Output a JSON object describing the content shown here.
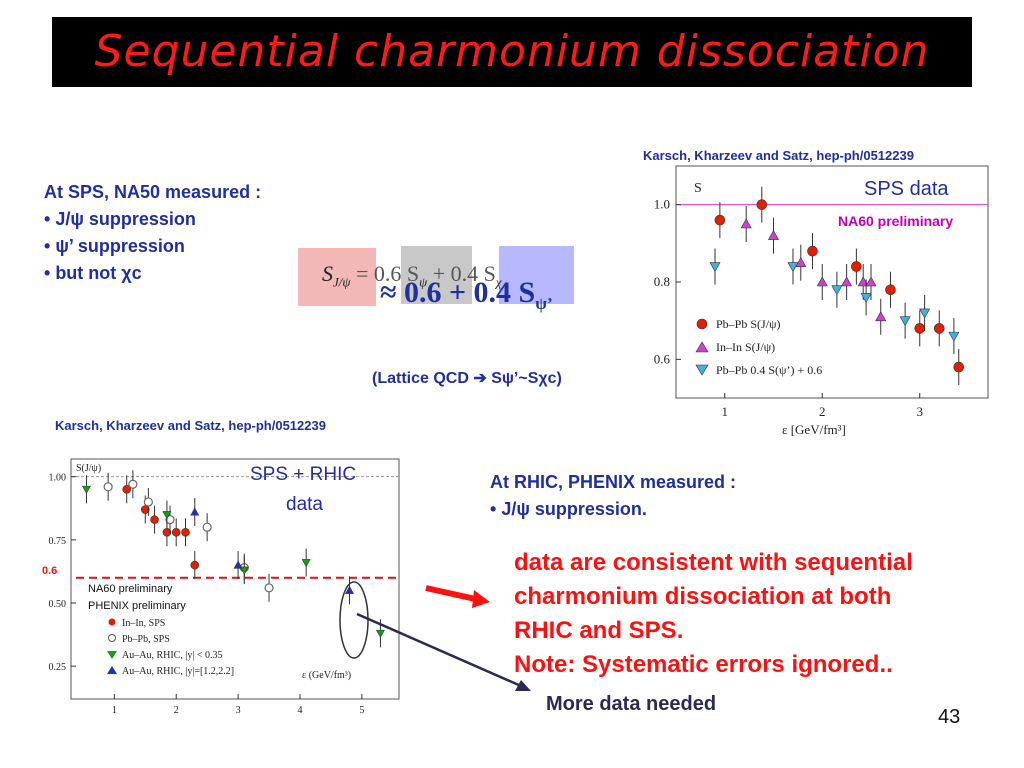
{
  "title": "Sequential charmonium dissociation",
  "left_text": {
    "heading": "At SPS, NA50 measured :",
    "bullets": [
      "J/ψ suppression",
      "ψ’ suppression",
      "but not χc"
    ]
  },
  "formula": {
    "lhs": "S",
    "lhs_sub": "J/ψ",
    "eq": "= 0.6 S",
    "term1_sub": "ψ",
    "plus": "+ 0.4 S",
    "term2_sub": "χ",
    "approx": "≈ 0.6 + 0.4 S",
    "approx_sub": "ψ’"
  },
  "lattice_note": "(Lattice QCD ➔ Sψ’~Sχc)",
  "citation_top": "Karsch, Kharzeev and Satz, hep-ph/0512239",
  "citation_bottom": "Karsch, Kharzeev and Satz, hep-ph/0512239",
  "rhic_text": {
    "heading": "At RHIC, PHENIX measured :",
    "bullet": "J/ψ suppression."
  },
  "conclusion": [
    "data are consistent with sequential",
    "charmonium dissociation at both",
    "RHIC and SPS.",
    "Note: Systematic errors ignored.."
  ],
  "more_data": "More data needed",
  "page_number": "43",
  "colors": {
    "title_bg": "#000000",
    "title_fg": "#ff1a1a",
    "blue_text": "#1f2f9f",
    "red_text": "#ff1010",
    "magenta": "#c000c0"
  },
  "chart_data": [
    {
      "type": "scatter",
      "overlay_title": "SPS data",
      "overlay_label": "NA60 preliminary",
      "panel_label": "S",
      "xlabel": "ε  [GeV/fm³]",
      "xlim": [
        0.5,
        3.7
      ],
      "ylim": [
        0.5,
        1.1
      ],
      "xticks": [
        "1",
        "2",
        "3"
      ],
      "yticks": [
        "0.6",
        "0.8",
        "1.0"
      ],
      "reference_line": 1.0,
      "legend": [
        "Pb–Pb  S(J/ψ)",
        "In–In    S(J/ψ)",
        "Pb–Pb  0.4 S(ψ’) + 0.6"
      ],
      "series": [
        {
          "name": "Pb–Pb  S(J/ψ)",
          "marker": "circle",
          "color": "#e02000",
          "points": [
            [
              0.95,
              0.96
            ],
            [
              1.38,
              1.0
            ],
            [
              1.9,
              0.88
            ],
            [
              2.35,
              0.84
            ],
            [
              2.7,
              0.78
            ],
            [
              3.0,
              0.68
            ],
            [
              3.2,
              0.68
            ],
            [
              3.4,
              0.58
            ]
          ]
        },
        {
          "name": "In–In    S(J/ψ)",
          "marker": "triangle-up",
          "color": "#d040d0",
          "points": [
            [
              1.22,
              0.95
            ],
            [
              1.5,
              0.92
            ],
            [
              1.78,
              0.85
            ],
            [
              2.0,
              0.8
            ],
            [
              2.25,
              0.8
            ],
            [
              2.42,
              0.8
            ],
            [
              2.5,
              0.8
            ],
            [
              2.6,
              0.71
            ]
          ]
        },
        {
          "name": "Pb–Pb  0.4 S(ψ’) + 0.6",
          "marker": "triangle-down",
          "color": "#40b0e0",
          "points": [
            [
              0.9,
              0.84
            ],
            [
              1.7,
              0.84
            ],
            [
              2.15,
              0.78
            ],
            [
              2.45,
              0.76
            ],
            [
              2.85,
              0.7
            ],
            [
              3.05,
              0.72
            ],
            [
              3.35,
              0.66
            ]
          ]
        }
      ]
    },
    {
      "type": "scatter",
      "overlay_title": "SPS + RHIC data",
      "panel_label": "S(J/ψ)",
      "xlabel": "ε (GeV/fm³)",
      "xlim": [
        0.3,
        5.6
      ],
      "ylim": [
        0.12,
        1.07
      ],
      "xticks": [
        "1",
        "2",
        "3",
        "4",
        "5"
      ],
      "yticks": [
        "0.25",
        "0.50",
        "0.75",
        "1.00"
      ],
      "reference_line": 1.0,
      "dashed_line_label": "0.6",
      "dashed_line": 0.6,
      "annotations": [
        "NA60 preliminary",
        "PHENIX preliminary"
      ],
      "legend": [
        "In–In, SPS",
        "Pb–Pb, SPS",
        "Au–Au, RHIC, |y| < 0.35",
        "Au–Au, RHIC, |y|=[1.2,2.2]"
      ],
      "series": [
        {
          "name": "In–In, SPS",
          "marker": "circle",
          "color": "#e02000",
          "points": [
            [
              1.2,
              0.95
            ],
            [
              1.5,
              0.87
            ],
            [
              1.65,
              0.83
            ],
            [
              1.85,
              0.78
            ],
            [
              2.0,
              0.78
            ],
            [
              2.15,
              0.78
            ],
            [
              2.3,
              0.65
            ]
          ]
        },
        {
          "name": "Pb–Pb, SPS",
          "marker": "circle-open",
          "color": "#666666",
          "points": [
            [
              0.9,
              0.96
            ],
            [
              1.3,
              0.97
            ],
            [
              1.55,
              0.9
            ],
            [
              1.9,
              0.83
            ],
            [
              2.5,
              0.8
            ],
            [
              3.1,
              0.64
            ],
            [
              3.5,
              0.56
            ]
          ]
        },
        {
          "name": "Au–Au, RHIC, |y| < 0.35",
          "marker": "triangle-down",
          "color": "#10a010",
          "points": [
            [
              0.55,
              0.95
            ],
            [
              1.85,
              0.85
            ],
            [
              3.1,
              0.63
            ],
            [
              4.1,
              0.66
            ],
            [
              5.3,
              0.38
            ]
          ]
        },
        {
          "name": "Au–Au, RHIC, |y|=[1.2,2.2]",
          "marker": "triangle-up",
          "color": "#2030c0",
          "points": [
            [
              2.3,
              0.86
            ],
            [
              3.0,
              0.65
            ],
            [
              4.8,
              0.55
            ]
          ]
        }
      ]
    }
  ]
}
